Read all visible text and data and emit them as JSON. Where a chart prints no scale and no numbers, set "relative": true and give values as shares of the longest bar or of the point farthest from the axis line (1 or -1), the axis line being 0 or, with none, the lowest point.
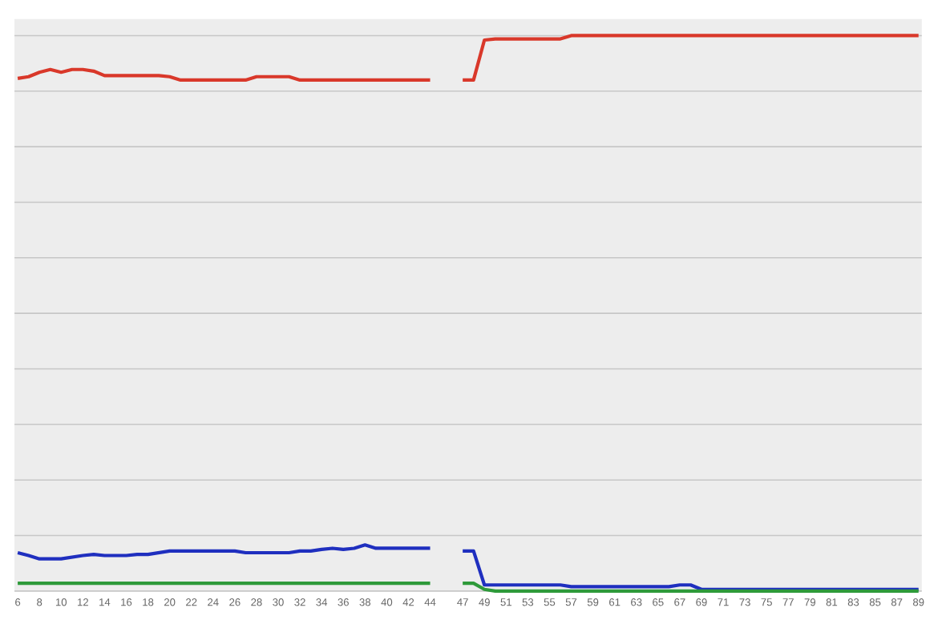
{
  "chart_data": {
    "type": "line",
    "relative": true,
    "grid": "y",
    "marker": "none",
    "line_style": "solid",
    "categories": [
      "6",
      null,
      "8",
      null,
      "10",
      null,
      "12",
      null,
      "14",
      null,
      "16",
      null,
      "18",
      null,
      "20",
      null,
      "22",
      null,
      "24",
      null,
      "26",
      null,
      "28",
      null,
      "30",
      null,
      "32",
      null,
      "34",
      null,
      "36",
      null,
      "38",
      null,
      "40",
      null,
      "42",
      null,
      "44",
      null,
      null,
      "47",
      null,
      "49",
      null,
      "51",
      null,
      "53",
      null,
      "55",
      null,
      "57",
      null,
      "59",
      null,
      "61",
      null,
      "63",
      null,
      "65",
      null,
      "67",
      null,
      "69",
      null,
      "71",
      null,
      "73",
      null,
      "75",
      null,
      "77",
      null,
      "79",
      null,
      "81",
      null,
      "83",
      null,
      "85",
      null,
      "87",
      null,
      "89"
    ],
    "series": [
      {
        "color": "#d9382a",
        "values": [
          0.923,
          0.926,
          0.934,
          0.939,
          0.934,
          0.939,
          0.939,
          0.936,
          0.928,
          0.928,
          0.928,
          0.928,
          0.928,
          0.928,
          0.926,
          0.92,
          0.92,
          0.92,
          0.92,
          0.92,
          0.92,
          0.92,
          0.926,
          0.926,
          0.926,
          0.926,
          0.92,
          0.92,
          0.92,
          0.92,
          0.92,
          0.92,
          0.92,
          0.92,
          0.92,
          0.92,
          0.92,
          0.92,
          0.92,
          null,
          null,
          0.92,
          0.92,
          0.992,
          0.994,
          0.994,
          0.994,
          0.994,
          0.994,
          0.994,
          0.994,
          1,
          1,
          1,
          1,
          1,
          1,
          1,
          1,
          1,
          1,
          1,
          1,
          1,
          1,
          1,
          1,
          1,
          1,
          1,
          1,
          1,
          1,
          1,
          1,
          1,
          1,
          1,
          1,
          1,
          1,
          1,
          1,
          1
        ]
      },
      {
        "color": "#1f2fbf",
        "values": [
          0.069,
          0.064,
          0.058,
          0.058,
          0.058,
          0.061,
          0.064,
          0.066,
          0.064,
          0.064,
          0.064,
          0.066,
          0.066,
          0.069,
          0.072,
          0.072,
          0.072,
          0.072,
          0.072,
          0.072,
          0.072,
          0.069,
          0.069,
          0.069,
          0.069,
          0.069,
          0.072,
          0.072,
          0.075,
          0.077,
          0.075,
          0.077,
          0.083,
          0.077,
          0.077,
          0.077,
          0.077,
          0.077,
          0.077,
          null,
          null,
          0.072,
          0.072,
          0.011,
          0.011,
          0.011,
          0.011,
          0.011,
          0.011,
          0.011,
          0.011,
          0.008,
          0.008,
          0.008,
          0.008,
          0.008,
          0.008,
          0.008,
          0.008,
          0.008,
          0.008,
          0.011,
          0.011,
          0.003,
          0.003,
          0.003,
          0.003,
          0.003,
          0.003,
          0.003,
          0.003,
          0.003,
          0.003,
          0.003,
          0.003,
          0.003,
          0.003,
          0.003,
          0.003,
          0.003,
          0.003,
          0.003,
          0.003,
          0.003
        ]
      },
      {
        "color": "#2e9a3a",
        "values": [
          0.014,
          0.014,
          0.014,
          0.014,
          0.014,
          0.014,
          0.014,
          0.014,
          0.014,
          0.014,
          0.014,
          0.014,
          0.014,
          0.014,
          0.014,
          0.014,
          0.014,
          0.014,
          0.014,
          0.014,
          0.014,
          0.014,
          0.014,
          0.014,
          0.014,
          0.014,
          0.014,
          0.014,
          0.014,
          0.014,
          0.014,
          0.014,
          0.014,
          0.014,
          0.014,
          0.014,
          0.014,
          0.014,
          0.014,
          null,
          null,
          0.014,
          0.014,
          0.003,
          0,
          0,
          0,
          0,
          0,
          0,
          0,
          0,
          0,
          0,
          0,
          0,
          0,
          0,
          0,
          0,
          0,
          0,
          0,
          0,
          0,
          0,
          0,
          0,
          0,
          0,
          0,
          0,
          0,
          0,
          0,
          0,
          0,
          0,
          0,
          0,
          0,
          0,
          0,
          0
        ]
      }
    ]
  }
}
